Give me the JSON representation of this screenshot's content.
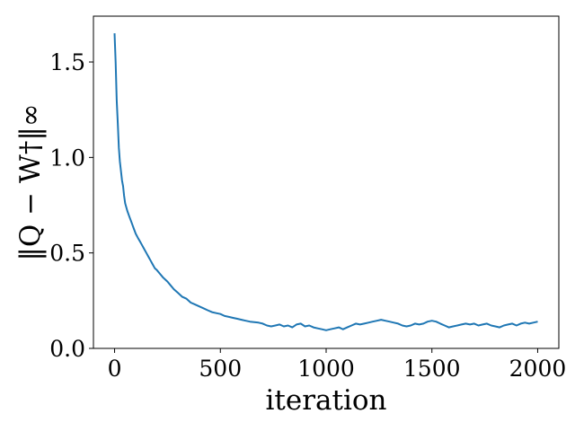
{
  "chart_data": {
    "type": "line",
    "title": "",
    "xlabel": "iteration",
    "ylabel": "‖Q − W†‖∞",
    "xlim": [
      -100,
      2100
    ],
    "ylim": [
      0,
      1.74
    ],
    "xticks": [
      0,
      500,
      1000,
      1500,
      2000
    ],
    "xtick_labels": [
      "0",
      "500",
      "1000",
      "1500",
      "2000"
    ],
    "yticks": [
      0.0,
      0.5,
      1.0,
      1.5
    ],
    "ytick_labels": [
      "0.0",
      "0.5",
      "1.0",
      "1.5"
    ],
    "grid": false,
    "legend": "none",
    "series": [
      {
        "color": "#1f77b4",
        "x": [
          0,
          5,
          10,
          15,
          20,
          25,
          30,
          35,
          40,
          45,
          50,
          60,
          70,
          80,
          90,
          100,
          110,
          120,
          130,
          140,
          150,
          160,
          170,
          180,
          190,
          200,
          215,
          230,
          250,
          265,
          280,
          300,
          320,
          340,
          360,
          380,
          400,
          420,
          440,
          460,
          480,
          500,
          520,
          540,
          560,
          580,
          600,
          620,
          640,
          660,
          680,
          700,
          720,
          740,
          760,
          780,
          800,
          820,
          840,
          860,
          880,
          900,
          920,
          940,
          960,
          980,
          1000,
          1020,
          1040,
          1060,
          1080,
          1100,
          1120,
          1140,
          1160,
          1180,
          1200,
          1220,
          1240,
          1260,
          1280,
          1300,
          1320,
          1340,
          1360,
          1380,
          1400,
          1420,
          1440,
          1460,
          1480,
          1500,
          1520,
          1540,
          1560,
          1580,
          1600,
          1620,
          1640,
          1660,
          1680,
          1700,
          1720,
          1740,
          1760,
          1780,
          1800,
          1820,
          1840,
          1860,
          1880,
          1900,
          1920,
          1940,
          1960,
          1980,
          2000
        ],
        "y": [
          1.65,
          1.5,
          1.3,
          1.18,
          1.05,
          0.98,
          0.93,
          0.88,
          0.85,
          0.8,
          0.76,
          0.72,
          0.69,
          0.66,
          0.63,
          0.6,
          0.58,
          0.56,
          0.54,
          0.52,
          0.5,
          0.48,
          0.46,
          0.44,
          0.42,
          0.41,
          0.39,
          0.37,
          0.35,
          0.33,
          0.31,
          0.29,
          0.27,
          0.26,
          0.24,
          0.23,
          0.22,
          0.21,
          0.2,
          0.19,
          0.185,
          0.18,
          0.17,
          0.165,
          0.16,
          0.155,
          0.15,
          0.145,
          0.14,
          0.138,
          0.135,
          0.13,
          0.12,
          0.115,
          0.12,
          0.125,
          0.115,
          0.12,
          0.11,
          0.125,
          0.13,
          0.115,
          0.12,
          0.11,
          0.105,
          0.1,
          0.095,
          0.1,
          0.105,
          0.11,
          0.1,
          0.11,
          0.12,
          0.13,
          0.125,
          0.13,
          0.135,
          0.14,
          0.145,
          0.15,
          0.145,
          0.14,
          0.135,
          0.13,
          0.12,
          0.115,
          0.12,
          0.13,
          0.125,
          0.13,
          0.14,
          0.145,
          0.14,
          0.13,
          0.12,
          0.11,
          0.115,
          0.12,
          0.125,
          0.13,
          0.125,
          0.13,
          0.12,
          0.125,
          0.13,
          0.12,
          0.115,
          0.11,
          0.12,
          0.125,
          0.13,
          0.12,
          0.13,
          0.135,
          0.13,
          0.135,
          0.14
        ]
      }
    ]
  }
}
